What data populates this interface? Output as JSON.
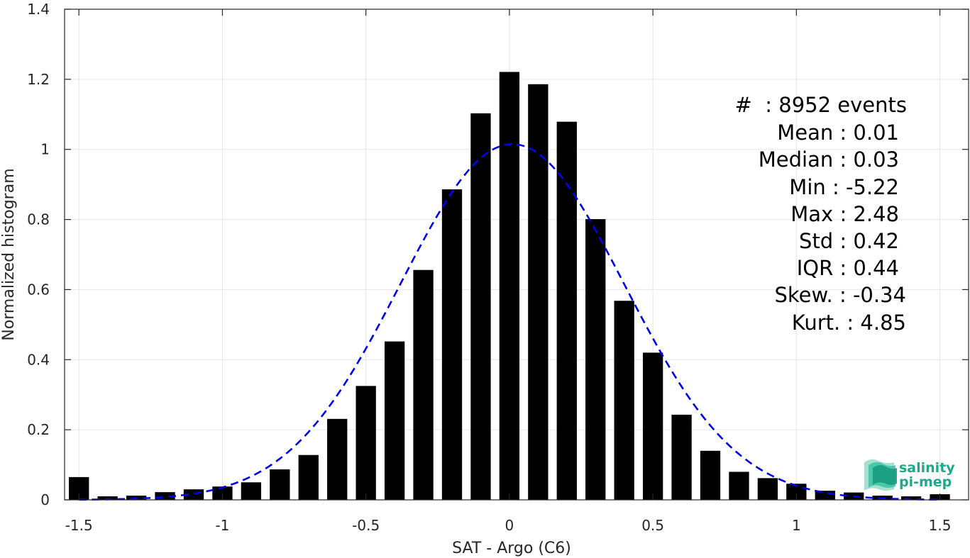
{
  "chart_data": {
    "type": "bar",
    "xlabel": "SAT - Argo (C6)",
    "ylabel": "Normalized histogram",
    "xlim": [
      -1.55,
      1.6
    ],
    "ylim": [
      0,
      1.4
    ],
    "grid": true,
    "x_ticks": [
      -1.5,
      -1,
      -0.5,
      0,
      0.5,
      1,
      1.5
    ],
    "x_tick_labels": [
      "-1.5",
      "-1",
      "-0.5",
      "0",
      "0.5",
      "1",
      "1.5"
    ],
    "y_ticks": [
      0,
      0.2,
      0.4,
      0.6,
      0.8,
      1,
      1.2,
      1.4
    ],
    "y_tick_labels": [
      "0",
      "0.2",
      "0.4",
      "0.6",
      "0.8",
      "1",
      "1.2",
      "1.4"
    ],
    "bar_width": 0.07,
    "x": [
      -1.5,
      -1.4,
      -1.3,
      -1.2,
      -1.1,
      -1.0,
      -0.9,
      -0.8,
      -0.7,
      -0.6,
      -0.5,
      -0.4,
      -0.3,
      -0.2,
      -0.1,
      0.0,
      0.1,
      0.2,
      0.3,
      0.4,
      0.5,
      0.6,
      0.7,
      0.8,
      0.9,
      1.0,
      1.1,
      1.2,
      1.3,
      1.4,
      1.5
    ],
    "values": [
      0.065,
      0.01,
      0.012,
      0.022,
      0.03,
      0.038,
      0.05,
      0.087,
      0.128,
      0.231,
      0.325,
      0.452,
      0.656,
      0.886,
      1.103,
      1.221,
      1.186,
      1.079,
      0.801,
      0.568,
      0.42,
      0.243,
      0.14,
      0.08,
      0.062,
      0.046,
      0.026,
      0.021,
      0.012,
      0.01,
      0.016
    ],
    "fit_curve": {
      "style": "dashed",
      "mean": 0.01,
      "std": 0.39,
      "peak": 1.015,
      "x_range": [
        -1.5,
        1.5
      ]
    },
    "stats": [
      {
        "label": "#  : 8952 events"
      },
      {
        "label": "Mean : 0.01"
      },
      {
        "label": "Median : 0.03"
      },
      {
        "label": "Min : -5.22"
      },
      {
        "label": "Max : 2.48"
      },
      {
        "label": "Std : 0.42"
      },
      {
        "label": "IQR : 0.44"
      },
      {
        "label": "Skew. : -0.34"
      },
      {
        "label": "Kurt. : 4.85"
      }
    ]
  },
  "colors": {
    "bar": "#000000",
    "fit_curve": "#0000ee",
    "grid": "#e6e6e6",
    "axis": "#262626",
    "logo_text": "#1fa88a",
    "logo_mark": "#2bb597"
  },
  "logo": {
    "line1": "salinity",
    "line2": "pi-mep"
  }
}
